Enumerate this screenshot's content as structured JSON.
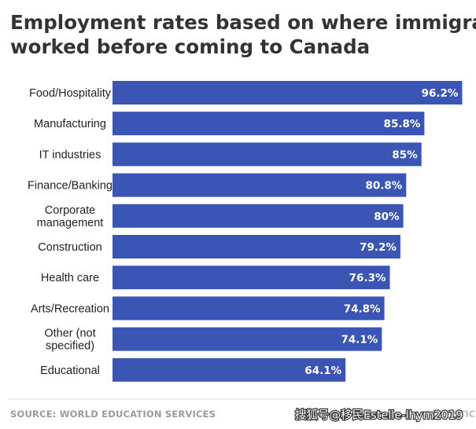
{
  "chart_data": {
    "type": "bar",
    "orientation": "horizontal",
    "title_lines": [
      "Employment rates based on where immigrants",
      "worked before coming to Canada"
    ],
    "categories": [
      [
        "Food/Hospitality"
      ],
      [
        "Manufacturing"
      ],
      [
        "IT industries"
      ],
      [
        "Finance/Banking"
      ],
      [
        "Corporate",
        "management"
      ],
      [
        "Construction"
      ],
      [
        "Health care"
      ],
      [
        "Arts/Recreation"
      ],
      [
        "Other (not",
        "specified)"
      ],
      [
        "Educational"
      ]
    ],
    "values": [
      96.2,
      85.8,
      85,
      80.8,
      80,
      79.2,
      76.3,
      74.8,
      74.1,
      64.1
    ],
    "value_labels": [
      "96.2%",
      "85.8%",
      "85%",
      "80.8%",
      "80%",
      "79.2%",
      "76.3%",
      "74.8%",
      "74.1%",
      "64.1%"
    ],
    "xlim": [
      0,
      100
    ],
    "xlabel": "",
    "ylabel": "",
    "grid": false,
    "legend": "none",
    "bar_color": "#3b55b5",
    "source": "SOURCE: WORLD EDUCATION SERVICES",
    "brand": "STATISTIC",
    "watermark": "搜狐号@移民Estelle-lhym2019"
  }
}
